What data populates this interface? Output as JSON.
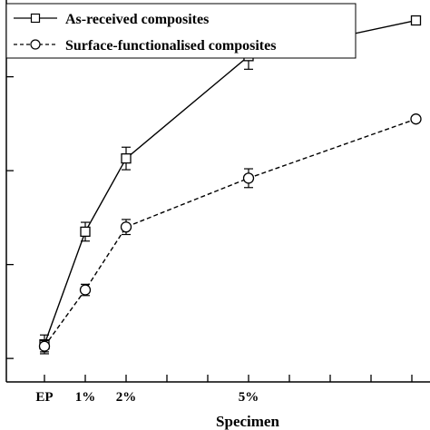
{
  "chart_data": {
    "type": "line",
    "title": "",
    "xlabel": "Specimen",
    "ylabel": "",
    "x_categories": [
      "EP",
      "1%",
      "2%",
      "5%"
    ],
    "x_positions": [
      0,
      1,
      2,
      5
    ],
    "xlim": [
      -0.2,
      9.1
    ],
    "ylim": [
      0.9,
      4.7
    ],
    "y_ticks": [
      1,
      2,
      3,
      4
    ],
    "grid": false,
    "legend_position": "top-left",
    "series": [
      {
        "name": "As-received composites",
        "marker": "square",
        "line_style": "solid",
        "color": "#000000",
        "x": [
          0,
          1,
          2,
          5,
          9.1
        ],
        "y": [
          1.15,
          2.35,
          3.13,
          4.22,
          4.6
        ],
        "error": [
          0.1,
          0.1,
          0.12,
          0.14,
          0
        ]
      },
      {
        "name": "Surface-functionalised composites",
        "marker": "circle",
        "line_style": "dashed",
        "color": "#000000",
        "x": [
          0,
          1,
          2,
          5,
          9.1
        ],
        "y": [
          1.13,
          1.73,
          2.4,
          2.92,
          3.55
        ],
        "error": [
          0.06,
          0.06,
          0.08,
          0.1,
          0
        ]
      }
    ]
  }
}
